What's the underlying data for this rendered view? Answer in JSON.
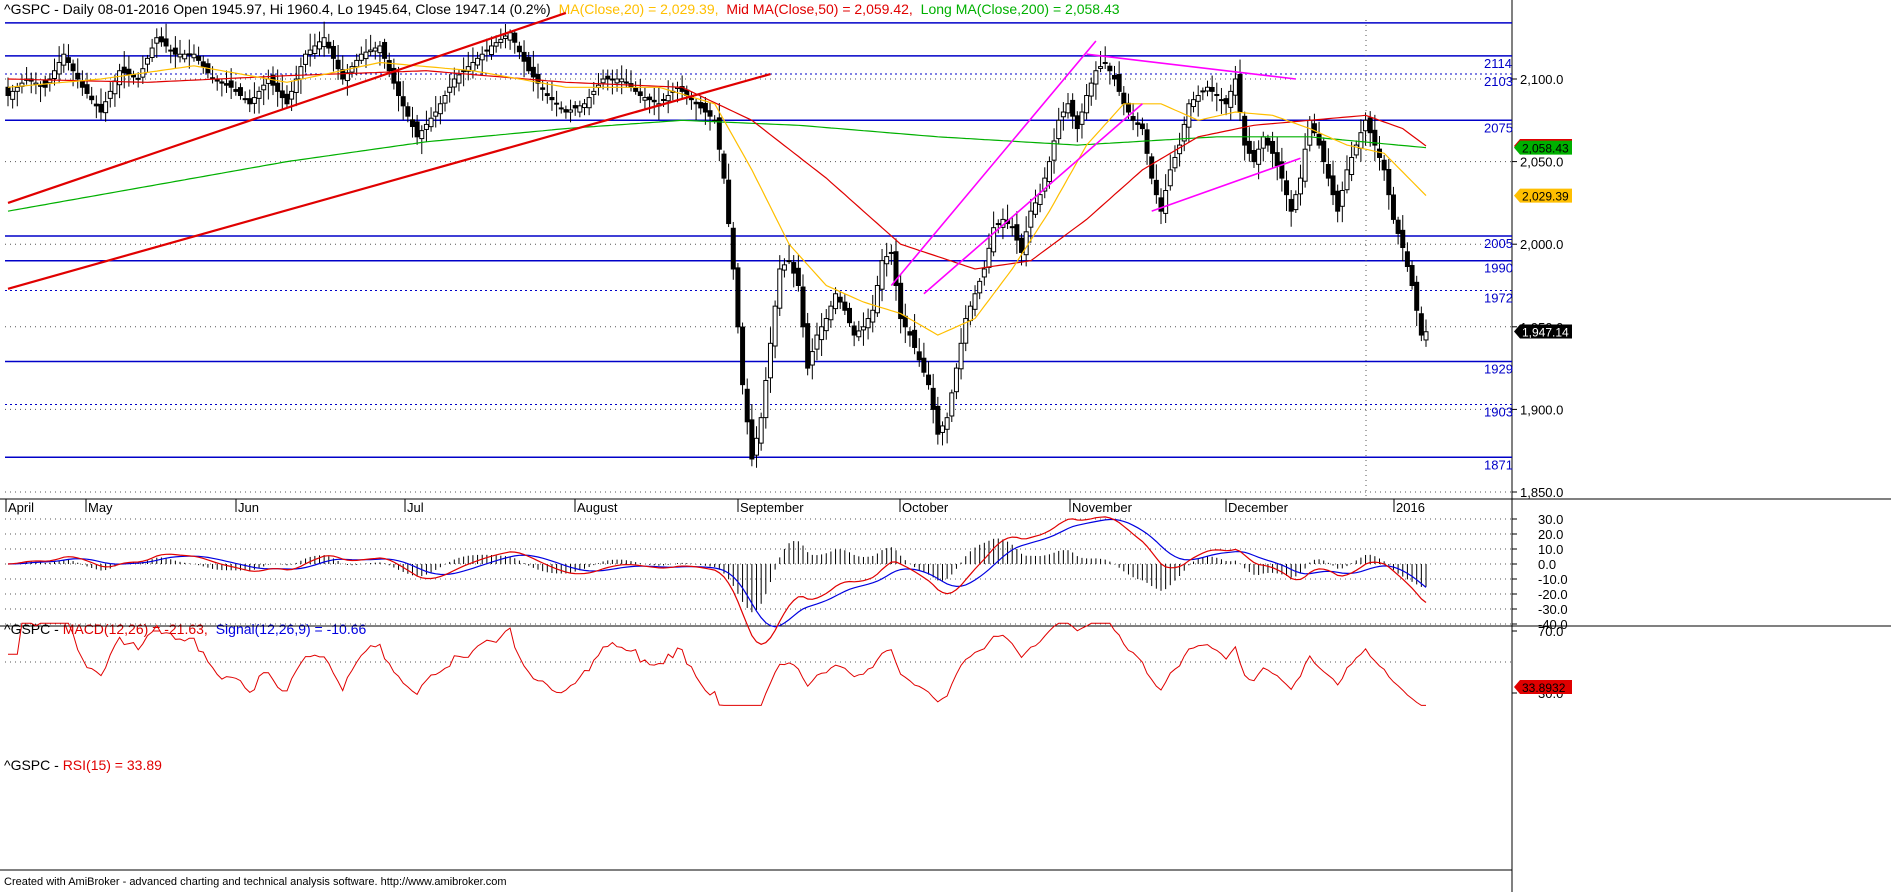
{
  "header": {
    "symbol": "^GSPC",
    "prefix": "^GSPC - Daily 08-01-2016 Open 1945.97, Hi 1960.4, Lo 1945.64, Close 1947.14 (0.2%)",
    "ma20": "MA(Close,20) = 2,029.39,",
    "ma50": "Mid MA(Close,50) = 2,059.42,",
    "ma200": "Long MA(Close,200) = 2,058.43"
  },
  "macd_header": {
    "prefix": "^GSPC - ",
    "macd": "MACD(12,26) = -21.63,",
    "signal": "Signal(12,26,9) = -10.66"
  },
  "rsi_header": {
    "prefix": "^GSPC - ",
    "rsi": "RSI(15) = 33.89"
  },
  "footer": "Created with AmiBroker - advanced charting and technical analysis software. http://www.amibroker.com",
  "colors": {
    "ma20": "#ffbf00",
    "ma50": "#e00000",
    "ma200": "#00b000",
    "hline": "#0000c8",
    "trend": "#e00000",
    "channel": "#ff00ff",
    "macd": "#e00000",
    "signal": "#0000e0",
    "rsi": "#e00000"
  },
  "chart_data": [
    {
      "type": "candlestick",
      "title": "^GSPC - Daily",
      "ylim": [
        1850,
        2140
      ],
      "price_axis_ticks": [
        "2,100.0",
        "2,050.0",
        "2,000.0",
        "1,950.0",
        "1,900.0",
        "1,850.0"
      ],
      "months": [
        "April",
        "May",
        "Jun",
        "Jul",
        "August",
        "September",
        "October",
        "November",
        "December",
        "2016"
      ],
      "horizontal_levels": [
        {
          "value": 2134,
          "label": "",
          "style": "solid"
        },
        {
          "value": 2114,
          "label": "2114",
          "style": "solid"
        },
        {
          "value": 2075,
          "label": "2075",
          "style": "solid"
        },
        {
          "value": 2005,
          "label": "2005",
          "style": "solid"
        },
        {
          "value": 1990,
          "label": "1990",
          "style": "solid"
        },
        {
          "value": 1972,
          "label": "1972",
          "style": "dotted"
        },
        {
          "value": 1929,
          "label": "1929",
          "style": "solid"
        },
        {
          "value": 1903,
          "label": "1903",
          "style": "dotted"
        },
        {
          "value": 1871,
          "label": "1871",
          "style": "solid"
        },
        {
          "value": 2103,
          "label": "2103",
          "style": "dotted"
        }
      ],
      "last_values": [
        {
          "label": "2,059.42",
          "value": 2059.42,
          "bg": "#e00000",
          "fg": "#000000"
        },
        {
          "label": "2,058.43",
          "value": 2058.43,
          "bg": "#00b000",
          "fg": "#000000"
        },
        {
          "label": "2,029.39",
          "value": 2029.39,
          "bg": "#ffbf00",
          "fg": "#000000"
        },
        {
          "label": "1,947.14",
          "value": 1947.14,
          "bg": "#000000",
          "fg": "#ffffff"
        }
      ],
      "close_anchors": [
        [
          0,
          2090
        ],
        [
          4,
          2100
        ],
        [
          8,
          2095
        ],
        [
          12,
          2115
        ],
        [
          16,
          2095
        ],
        [
          20,
          2080
        ],
        [
          24,
          2105
        ],
        [
          28,
          2100
        ],
        [
          32,
          2125
        ],
        [
          36,
          2115
        ],
        [
          40,
          2115
        ],
        [
          44,
          2100
        ],
        [
          48,
          2095
        ],
        [
          52,
          2085
        ],
        [
          56,
          2100
        ],
        [
          60,
          2085
        ],
        [
          64,
          2115
        ],
        [
          68,
          2125
        ],
        [
          72,
          2100
        ],
        [
          76,
          2115
        ],
        [
          80,
          2120
        ],
        [
          84,
          2090
        ],
        [
          88,
          2065
        ],
        [
          92,
          2080
        ],
        [
          96,
          2100
        ],
        [
          100,
          2110
        ],
        [
          104,
          2120
        ],
        [
          108,
          2128
        ],
        [
          112,
          2105
        ],
        [
          116,
          2090
        ],
        [
          120,
          2080
        ],
        [
          124,
          2085
        ],
        [
          128,
          2100
        ],
        [
          132,
          2100
        ],
        [
          136,
          2090
        ],
        [
          140,
          2085
        ],
        [
          144,
          2095
        ],
        [
          148,
          2085
        ],
        [
          152,
          2075
        ],
        [
          154,
          2040
        ],
        [
          156,
          1985
        ],
        [
          158,
          1915
        ],
        [
          160,
          1870
        ],
        [
          162,
          1895
        ],
        [
          164,
          1940
        ],
        [
          166,
          1985
        ],
        [
          168,
          1990
        ],
        [
          170,
          1975
        ],
        [
          172,
          1925
        ],
        [
          174,
          1945
        ],
        [
          176,
          1955
        ],
        [
          178,
          1970
        ],
        [
          180,
          1960
        ],
        [
          182,
          1945
        ],
        [
          184,
          1950
        ],
        [
          186,
          1960
        ],
        [
          188,
          1990
        ],
        [
          190,
          1995
        ],
        [
          192,
          1955
        ],
        [
          194,
          1945
        ],
        [
          196,
          1930
        ],
        [
          198,
          1915
        ],
        [
          200,
          1885
        ],
        [
          202,
          1895
        ],
        [
          204,
          1925
        ],
        [
          206,
          1955
        ],
        [
          208,
          1970
        ],
        [
          210,
          1985
        ],
        [
          212,
          2010
        ],
        [
          214,
          2015
        ],
        [
          216,
          2010
        ],
        [
          218,
          1995
        ],
        [
          220,
          2020
        ],
        [
          222,
          2030
        ],
        [
          224,
          2050
        ],
        [
          226,
          2075
        ],
        [
          228,
          2085
        ],
        [
          230,
          2070
        ],
        [
          232,
          2090
        ],
        [
          234,
          2105
        ],
        [
          236,
          2110
        ],
        [
          238,
          2100
        ],
        [
          240,
          2085
        ],
        [
          242,
          2075
        ],
        [
          244,
          2070
        ],
        [
          246,
          2040
        ],
        [
          248,
          2020
        ],
        [
          250,
          2045
        ],
        [
          252,
          2060
        ],
        [
          254,
          2085
        ],
        [
          256,
          2090
        ],
        [
          258,
          2095
        ],
        [
          260,
          2090
        ],
        [
          262,
          2085
        ],
        [
          264,
          2100
        ],
        [
          266,
          2060
        ],
        [
          268,
          2050
        ],
        [
          270,
          2065
        ],
        [
          272,
          2055
        ],
        [
          274,
          2040
        ],
        [
          276,
          2020
        ],
        [
          278,
          2040
        ],
        [
          280,
          2075
        ],
        [
          282,
          2060
        ],
        [
          284,
          2040
        ],
        [
          286,
          2020
        ],
        [
          288,
          2045
        ],
        [
          290,
          2060
        ],
        [
          292,
          2075
        ],
        [
          294,
          2060
        ],
        [
          296,
          2045
        ],
        [
          298,
          2015
        ],
        [
          300,
          1998
        ],
        [
          302,
          1975
        ],
        [
          304,
          1945
        ],
        [
          305,
          1947
        ]
      ],
      "ma20_anchors": [
        [
          0,
          2095
        ],
        [
          20,
          2100
        ],
        [
          40,
          2108
        ],
        [
          60,
          2098
        ],
        [
          80,
          2110
        ],
        [
          100,
          2105
        ],
        [
          120,
          2095
        ],
        [
          140,
          2095
        ],
        [
          152,
          2085
        ],
        [
          160,
          2045
        ],
        [
          168,
          2000
        ],
        [
          176,
          1975
        ],
        [
          184,
          1965
        ],
        [
          192,
          1958
        ],
        [
          200,
          1945
        ],
        [
          208,
          1955
        ],
        [
          216,
          1985
        ],
        [
          224,
          2020
        ],
        [
          232,
          2060
        ],
        [
          240,
          2085
        ],
        [
          248,
          2085
        ],
        [
          256,
          2075
        ],
        [
          264,
          2080
        ],
        [
          272,
          2078
        ],
        [
          280,
          2070
        ],
        [
          288,
          2060
        ],
        [
          296,
          2055
        ],
        [
          305,
          2029.39
        ]
      ],
      "ma50_anchors": [
        [
          0,
          2100
        ],
        [
          30,
          2098
        ],
        [
          60,
          2102
        ],
        [
          90,
          2105
        ],
        [
          120,
          2098
        ],
        [
          145,
          2095
        ],
        [
          160,
          2075
        ],
        [
          176,
          2040
        ],
        [
          192,
          2000
        ],
        [
          208,
          1985
        ],
        [
          220,
          1990
        ],
        [
          232,
          2015
        ],
        [
          244,
          2045
        ],
        [
          256,
          2065
        ],
        [
          268,
          2072
        ],
        [
          280,
          2075
        ],
        [
          292,
          2078
        ],
        [
          300,
          2070
        ],
        [
          305,
          2059.42
        ]
      ],
      "ma200_anchors": [
        [
          0,
          2020
        ],
        [
          30,
          2035
        ],
        [
          60,
          2050
        ],
        [
          90,
          2062
        ],
        [
          120,
          2070
        ],
        [
          145,
          2075
        ],
        [
          170,
          2072
        ],
        [
          200,
          2065
        ],
        [
          230,
          2060
        ],
        [
          260,
          2065
        ],
        [
          280,
          2065
        ],
        [
          305,
          2058.43
        ]
      ],
      "trendlines": [
        {
          "color": "#e00000",
          "from": [
            0,
            2025
          ],
          "to": [
            120,
            2140
          ]
        },
        {
          "color": "#e00000",
          "from": [
            0,
            1973
          ],
          "to": [
            164,
            2103
          ]
        },
        {
          "color": "#ff00ff",
          "from": [
            190,
            1975
          ],
          "to": [
            234,
            2123
          ]
        },
        {
          "color": "#ff00ff",
          "from": [
            197,
            1970
          ],
          "to": [
            244,
            2085
          ]
        },
        {
          "color": "#ff00ff",
          "from": [
            232,
            2115
          ],
          "to": [
            277,
            2100
          ]
        },
        {
          "color": "#ff00ff",
          "from": [
            246,
            2020
          ],
          "to": [
            278,
            2052
          ]
        }
      ]
    },
    {
      "type": "line",
      "title": "MACD(12,26)",
      "ylim": [
        -45,
        35
      ],
      "ticks": [
        "30.0",
        "20.0",
        "10.0",
        "0.0",
        "-10.0",
        "-20.0",
        "-30.0",
        "-40.0"
      ],
      "series": [
        {
          "name": "MACD(12,26)",
          "last": -21.63
        },
        {
          "name": "Signal(12,26,9)",
          "last": -10.66
        }
      ]
    },
    {
      "type": "line",
      "title": "RSI(15)",
      "ylim": [
        25,
        75
      ],
      "ticks": [
        "70.0",
        "30.0"
      ],
      "series": [
        {
          "name": "RSI(15)",
          "last": 33.89
        }
      ],
      "last_label": "33.8932"
    }
  ]
}
